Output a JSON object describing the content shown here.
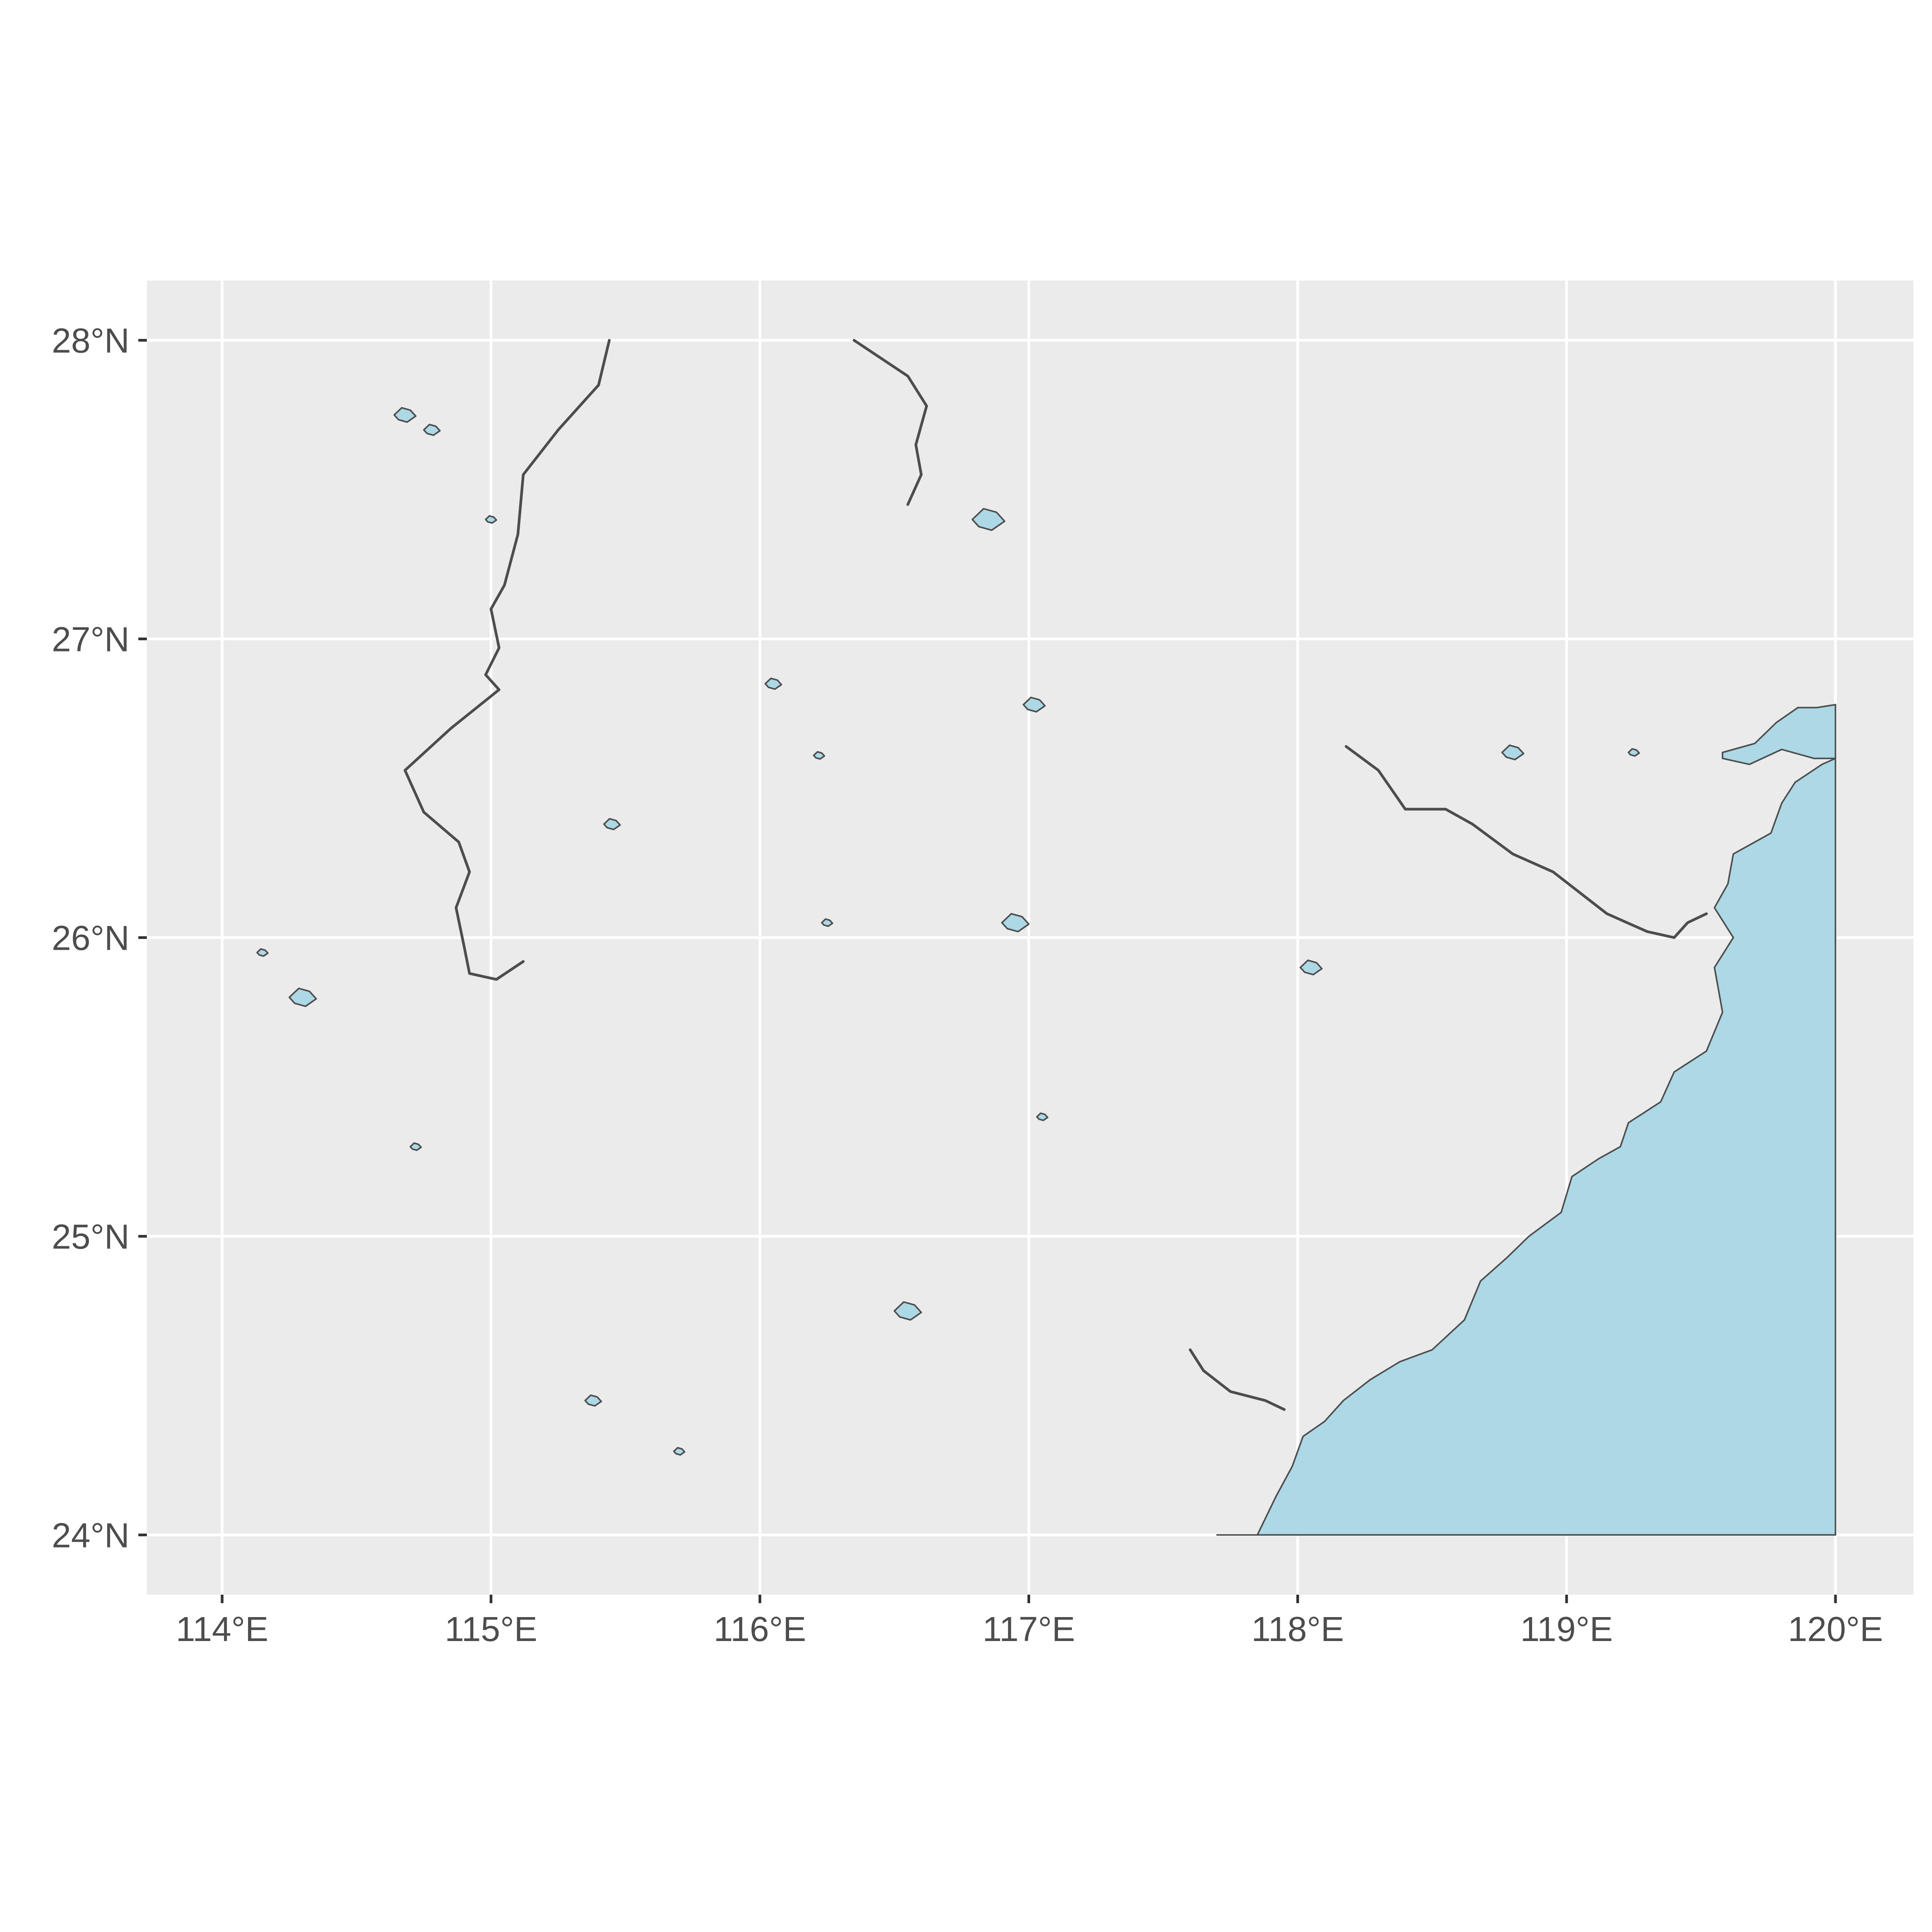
{
  "map": {
    "panel_background": "#ebebeb",
    "gridline_color": "#ffffff",
    "water_fill": "#add8e6",
    "outline_color": "#4d4d4d",
    "x_ticks": [
      {
        "lon": 114,
        "label": "114°E"
      },
      {
        "lon": 115,
        "label": "115°E"
      },
      {
        "lon": 116,
        "label": "116°E"
      },
      {
        "lon": 117,
        "label": "117°E"
      },
      {
        "lon": 118,
        "label": "118°E"
      },
      {
        "lon": 119,
        "label": "119°E"
      },
      {
        "lon": 120,
        "label": "120°E"
      }
    ],
    "y_ticks": [
      {
        "lat": 24,
        "label": "24°N"
      },
      {
        "lat": 25,
        "label": "25°N"
      },
      {
        "lat": 26,
        "label": "26°N"
      },
      {
        "lat": 27,
        "label": "27°N"
      },
      {
        "lat": 28,
        "label": "28°N"
      }
    ],
    "extent": {
      "lon": [
        113.72,
        120.29
      ],
      "lat": [
        23.8,
        28.2
      ]
    }
  }
}
